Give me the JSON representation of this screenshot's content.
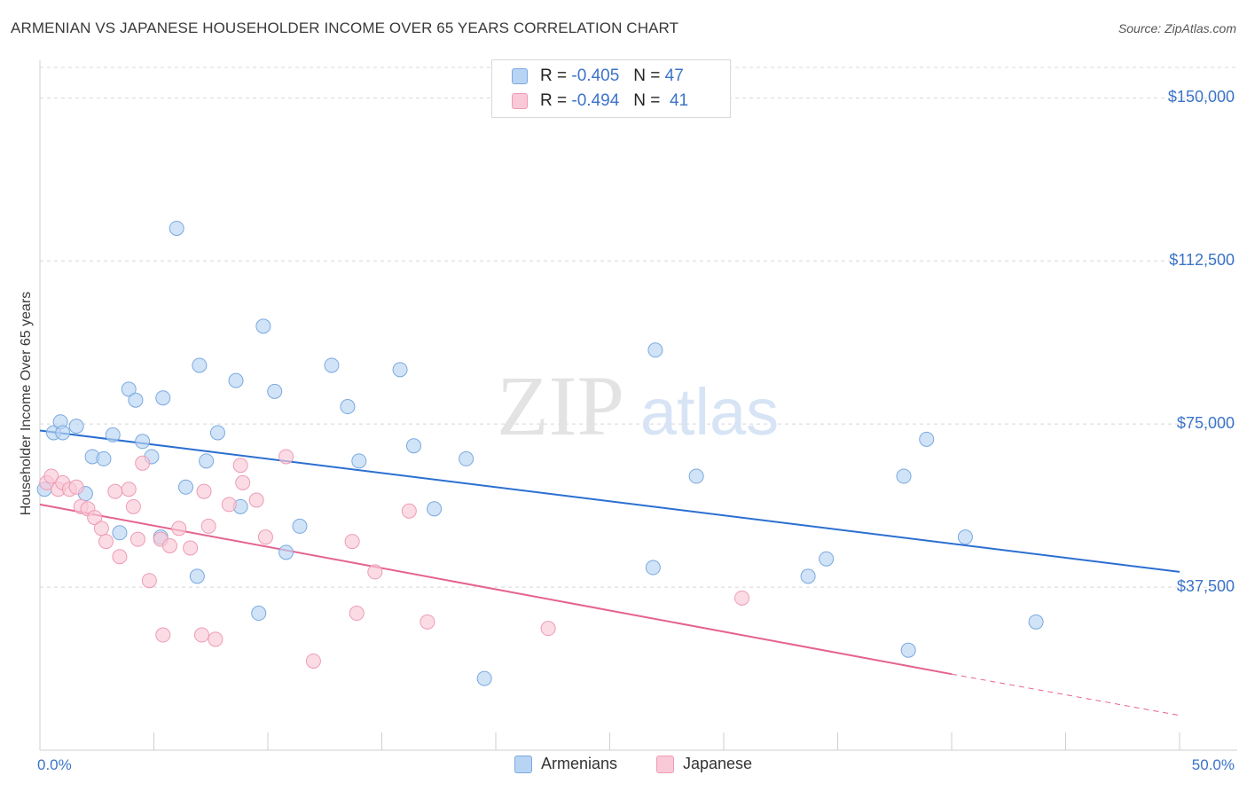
{
  "title": "ARMENIAN VS JAPANESE HOUSEHOLDER INCOME OVER 65 YEARS CORRELATION CHART",
  "source": "Source: ZipAtlas.com",
  "watermark": {
    "zip": "ZIP",
    "atlas": "atlas"
  },
  "legend_top": {
    "rows": [
      {
        "r_label": "R =",
        "r_value": "-0.405",
        "n_label": "N =",
        "n_value": "47"
      },
      {
        "r_label": "R =",
        "r_value": "-0.494",
        "n_label": "N =",
        "n_value": "41"
      }
    ]
  },
  "legend_bottom": {
    "items": [
      "Armenians",
      "Japanese"
    ]
  },
  "colors": {
    "armenians_fill": "#b8d4f3",
    "armenians_stroke": "#7aa9e0",
    "armenians_line": "#2b6fd1",
    "japanese_fill": "#f9c9d7",
    "japanese_stroke": "#ee9bb5",
    "japanese_line": "#e5638f",
    "axis_text": "#3b74c9",
    "grid": "#d8d8d8"
  },
  "chart_data": {
    "type": "scatter",
    "title": "ARMENIAN VS JAPANESE HOUSEHOLDER INCOME OVER 65 YEARS CORRELATION CHART",
    "xlabel": "",
    "ylabel": "Householder Income Over 65 years",
    "xlim": [
      0,
      50
    ],
    "ylim": [
      0,
      157000
    ],
    "x_tick_labels": [
      "0.0%",
      "50.0%"
    ],
    "y_ticks": [
      37500,
      75000,
      112500,
      150000
    ],
    "y_tick_labels": [
      "$37,500",
      "$75,000",
      "$112,500",
      "$150,000"
    ],
    "grid": true,
    "legend_position": "bottom",
    "series": [
      {
        "name": "Armenians",
        "points": [
          [
            0.2,
            60000
          ],
          [
            0.6,
            73000
          ],
          [
            0.9,
            75500
          ],
          [
            1.0,
            73000
          ],
          [
            1.6,
            74500
          ],
          [
            2.0,
            59000
          ],
          [
            2.3,
            67500
          ],
          [
            2.8,
            67000
          ],
          [
            3.2,
            72500
          ],
          [
            3.5,
            50000
          ],
          [
            3.9,
            83000
          ],
          [
            4.2,
            80500
          ],
          [
            4.5,
            71000
          ],
          [
            4.9,
            67500
          ],
          [
            5.3,
            49000
          ],
          [
            5.4,
            81000
          ],
          [
            6.0,
            120000
          ],
          [
            6.4,
            60500
          ],
          [
            6.9,
            40000
          ],
          [
            7.0,
            88500
          ],
          [
            7.3,
            66500
          ],
          [
            7.8,
            73000
          ],
          [
            8.6,
            85000
          ],
          [
            8.8,
            56000
          ],
          [
            9.6,
            31500
          ],
          [
            9.8,
            97500
          ],
          [
            10.3,
            82500
          ],
          [
            10.8,
            45500
          ],
          [
            11.4,
            51500
          ],
          [
            12.8,
            88500
          ],
          [
            13.5,
            79000
          ],
          [
            14.0,
            66500
          ],
          [
            15.8,
            87500
          ],
          [
            16.4,
            70000
          ],
          [
            17.3,
            55500
          ],
          [
            18.7,
            67000
          ],
          [
            19.5,
            16500
          ],
          [
            26.9,
            42000
          ],
          [
            27.0,
            92000
          ],
          [
            28.8,
            63000
          ],
          [
            33.7,
            40000
          ],
          [
            34.5,
            44000
          ],
          [
            37.9,
            63000
          ],
          [
            38.1,
            23000
          ],
          [
            38.9,
            71500
          ],
          [
            40.6,
            49000
          ],
          [
            43.7,
            29500
          ]
        ],
        "trend": {
          "x": [
            0,
            50
          ],
          "y": [
            73500,
            41000
          ]
        }
      },
      {
        "name": "Japanese",
        "points": [
          [
            0.3,
            61500
          ],
          [
            0.5,
            63000
          ],
          [
            0.8,
            60000
          ],
          [
            1.0,
            61500
          ],
          [
            1.3,
            60000
          ],
          [
            1.6,
            60500
          ],
          [
            1.8,
            56000
          ],
          [
            2.1,
            55500
          ],
          [
            2.4,
            53500
          ],
          [
            2.7,
            51000
          ],
          [
            2.9,
            48000
          ],
          [
            3.3,
            59500
          ],
          [
            3.5,
            44500
          ],
          [
            3.9,
            60000
          ],
          [
            4.1,
            56000
          ],
          [
            4.3,
            48500
          ],
          [
            4.5,
            66000
          ],
          [
            4.8,
            39000
          ],
          [
            5.3,
            48500
          ],
          [
            5.4,
            26500
          ],
          [
            5.7,
            47000
          ],
          [
            6.1,
            51000
          ],
          [
            6.6,
            46500
          ],
          [
            7.1,
            26500
          ],
          [
            7.2,
            59500
          ],
          [
            7.4,
            51500
          ],
          [
            7.7,
            25500
          ],
          [
            8.3,
            56500
          ],
          [
            8.8,
            65500
          ],
          [
            8.9,
            61500
          ],
          [
            9.5,
            57500
          ],
          [
            9.9,
            49000
          ],
          [
            10.8,
            67500
          ],
          [
            12.0,
            20500
          ],
          [
            13.7,
            48000
          ],
          [
            13.9,
            31500
          ],
          [
            14.7,
            41000
          ],
          [
            16.2,
            55000
          ],
          [
            17.0,
            29500
          ],
          [
            22.3,
            28000
          ],
          [
            30.8,
            35000
          ]
        ],
        "trend": {
          "x": [
            0,
            40
          ],
          "y": [
            56500,
            17500
          ]
        },
        "trend_extension": {
          "x": [
            40,
            50
          ],
          "y": [
            17500,
            8000
          ]
        }
      }
    ]
  }
}
